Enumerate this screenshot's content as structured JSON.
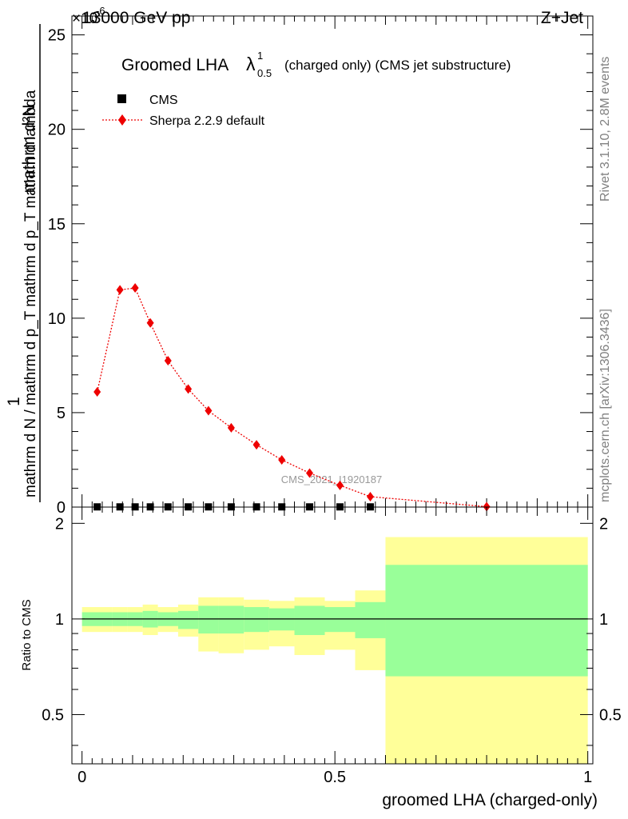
{
  "header": {
    "energy": "13000 GeV pp",
    "process": "Z+Jet",
    "exponent": "×10",
    "exponent_power": "-6"
  },
  "side": {
    "rivet": "Rivet 3.1.10,  2.8M events",
    "mcplots": "mcplots.cern.ch [arXiv:1306.3436]"
  },
  "chart_data": [
    {
      "type": "line",
      "title": "Groomed LHA λ (charged only) (CMS jet substructure)",
      "title_parts": {
        "lead": "Groomed LHA",
        "lambda": "λ",
        "sup": "1",
        "sub": "0.5",
        "tail": "(charged only) (CMS jet substructure)"
      },
      "ylabel_numerator": "mathrm d²N",
      "ylabel_denominator": "mathrm d N / mathrm d p_T mathrm d p_T mathrm d lambda",
      "ylabel_lead": "1",
      "ylim": [
        0,
        26
      ],
      "yticks": [
        0,
        5,
        10,
        15,
        20,
        25
      ],
      "xlim": [
        -0.02,
        1.01
      ],
      "watermark": "CMS_2021_I1920187",
      "legend_position": "top-left",
      "series": [
        {
          "name": "CMS",
          "color": "#000000",
          "marker": "square",
          "x": [
            0.03,
            0.075,
            0.105,
            0.135,
            0.17,
            0.21,
            0.25,
            0.295,
            0.345,
            0.395,
            0.45,
            0.51,
            0.57
          ],
          "y": [
            0.01,
            0.01,
            0.01,
            0.01,
            0.01,
            0.01,
            0.01,
            0.01,
            0.01,
            0.01,
            0.01,
            0.01,
            0.01
          ]
        },
        {
          "name": "Sherpa 2.2.9 default",
          "color": "#ee0000",
          "marker": "diamond",
          "x": [
            0.03,
            0.075,
            0.105,
            0.135,
            0.17,
            0.21,
            0.25,
            0.295,
            0.345,
            0.395,
            0.45,
            0.51,
            0.57,
            0.8
          ],
          "y": [
            6.1,
            11.5,
            11.6,
            9.75,
            7.75,
            6.25,
            5.1,
            4.2,
            3.3,
            2.5,
            1.8,
            1.15,
            0.55,
            0.02
          ]
        }
      ]
    },
    {
      "type": "area",
      "ylabel": "Ratio to CMS",
      "xlabel": "groomed LHA (charged-only)",
      "ylim": [
        0.35,
        2.25
      ],
      "yticks": [
        0.5,
        1,
        2
      ],
      "ytick_labels": [
        "0.5",
        "1",
        "2"
      ],
      "xticks": [
        0,
        0.5,
        1
      ],
      "xtick_labels": [
        "0",
        "0.5",
        "1"
      ],
      "band_colors": {
        "outer": "#ffff99",
        "inner": "#99ff99"
      },
      "reference_line": 1,
      "bands": {
        "edges": [
          0.0,
          0.06,
          0.09,
          0.12,
          0.15,
          0.19,
          0.23,
          0.27,
          0.32,
          0.37,
          0.42,
          0.48,
          0.54,
          0.6,
          1.0
        ],
        "outer_lo": [
          0.91,
          0.91,
          0.91,
          0.89,
          0.91,
          0.88,
          0.79,
          0.78,
          0.8,
          0.82,
          0.77,
          0.8,
          0.69,
          0.35
        ],
        "outer_hi": [
          1.09,
          1.09,
          1.09,
          1.11,
          1.09,
          1.11,
          1.17,
          1.17,
          1.15,
          1.14,
          1.17,
          1.14,
          1.23,
          1.81
        ],
        "inner_lo": [
          0.95,
          0.95,
          0.95,
          0.94,
          0.95,
          0.93,
          0.9,
          0.9,
          0.91,
          0.92,
          0.89,
          0.91,
          0.87,
          0.66
        ],
        "inner_hi": [
          1.05,
          1.05,
          1.05,
          1.06,
          1.05,
          1.06,
          1.1,
          1.1,
          1.09,
          1.08,
          1.1,
          1.09,
          1.13,
          1.48
        ]
      }
    }
  ]
}
